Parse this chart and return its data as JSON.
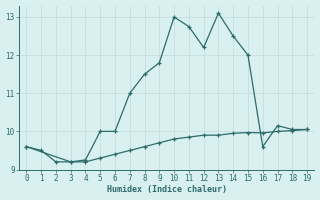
{
  "xlabel": "Humidex (Indice chaleur)",
  "x": [
    0,
    1,
    2,
    3,
    4,
    5,
    6,
    7,
    8,
    9,
    10,
    11,
    12,
    13,
    14,
    15,
    16,
    17,
    18,
    19
  ],
  "line1_y": [
    9.6,
    9.5,
    9.2,
    9.2,
    9.25,
    10.0,
    10.0,
    11.0,
    11.5,
    11.8,
    13.0,
    12.75,
    12.2,
    13.1,
    12.5,
    12.0,
    9.6,
    10.15,
    10.05,
    10.05
  ],
  "smooth_y": [
    9.6,
    null,
    null,
    9.2,
    9.2,
    9.3,
    9.4,
    9.5,
    9.6,
    9.7,
    9.8,
    9.85,
    9.9,
    9.9,
    9.95,
    9.97,
    9.96,
    10.0,
    10.02,
    10.05
  ],
  "line_color": "#2e6b6b",
  "bg_color": "#d8f0f0",
  "grid_color": "#c8dede",
  "xlim": [
    -0.5,
    19.5
  ],
  "ylim": [
    9.0,
    13.3
  ],
  "yticks": [
    9,
    10,
    11,
    12,
    13
  ],
  "xticks": [
    0,
    1,
    2,
    3,
    4,
    5,
    6,
    7,
    8,
    9,
    10,
    11,
    12,
    13,
    14,
    15,
    16,
    17,
    18,
    19
  ]
}
